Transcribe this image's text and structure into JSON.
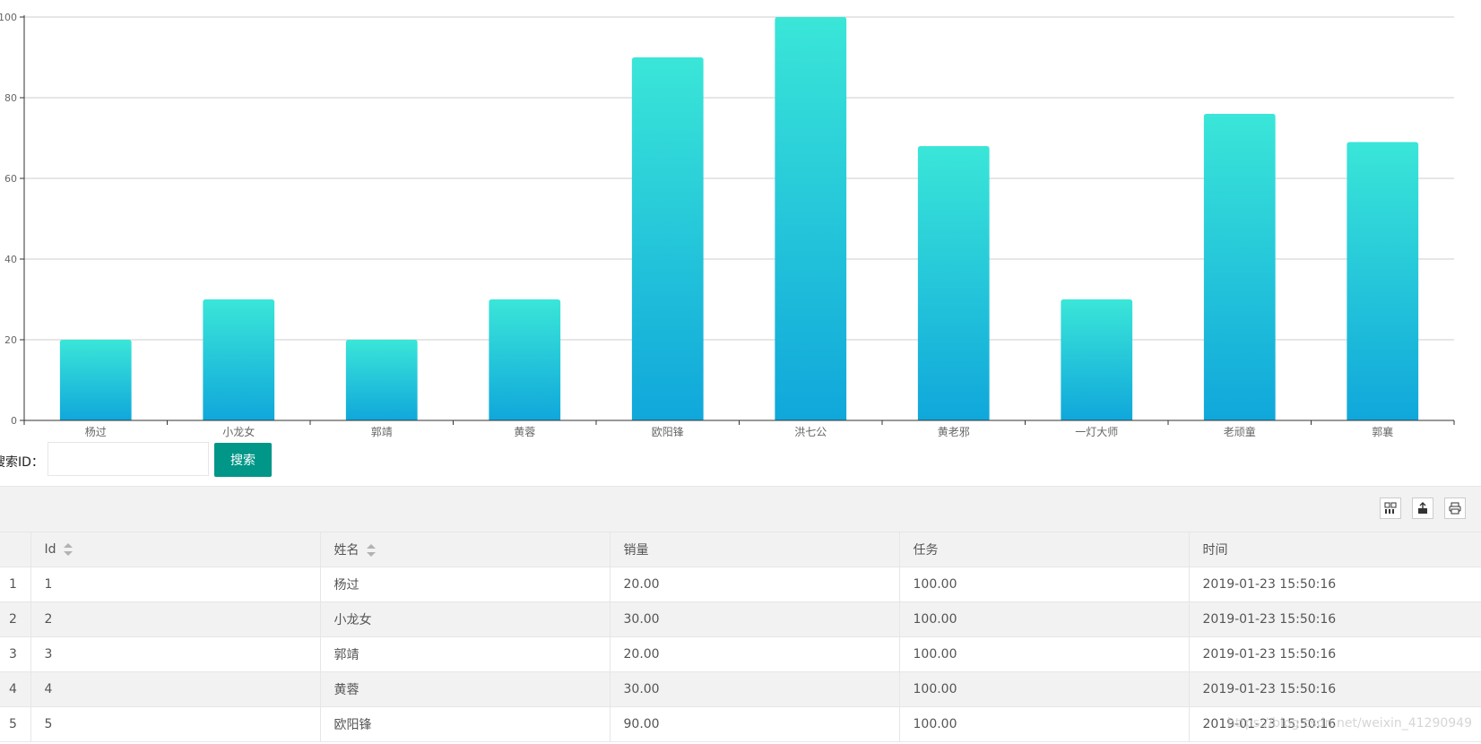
{
  "chart_data": {
    "type": "bar",
    "categories": [
      "杨过",
      "小龙女",
      "郭靖",
      "黄蓉",
      "欧阳锋",
      "洪七公",
      "黄老邪",
      "一灯大师",
      "老顽童",
      "郭襄"
    ],
    "values": [
      20,
      30,
      20,
      30,
      90,
      100,
      68,
      30,
      76,
      69
    ],
    "yticks": [
      0,
      20,
      40,
      60,
      80,
      100
    ],
    "ylim": [
      0,
      100
    ],
    "grid": true,
    "colors": {
      "top": "#3ae6d8",
      "bottom": "#10a7db",
      "axis": "#333333",
      "grid": "#cccccc"
    }
  },
  "search": {
    "label": "搜索ID：",
    "placeholder": "",
    "value": "",
    "button": "搜索"
  },
  "toolbar": {
    "icons": [
      "columns-icon",
      "export-icon",
      "print-icon"
    ]
  },
  "table": {
    "columns": [
      "",
      "Id",
      "姓名",
      "销量",
      "任务",
      "时间"
    ],
    "rows": [
      [
        "1",
        "1",
        "杨过",
        "20.00",
        "100.00",
        "2019-01-23 15:50:16"
      ],
      [
        "2",
        "2",
        "小龙女",
        "30.00",
        "100.00",
        "2019-01-23 15:50:16"
      ],
      [
        "3",
        "3",
        "郭靖",
        "20.00",
        "100.00",
        "2019-01-23 15:50:16"
      ],
      [
        "4",
        "4",
        "黄蓉",
        "30.00",
        "100.00",
        "2019-01-23 15:50:16"
      ],
      [
        "5",
        "5",
        "欧阳锋",
        "90.00",
        "100.00",
        "2019-01-23 15:50:16"
      ]
    ]
  },
  "watermark": "https://blog.csdn.net/weixin_41290949"
}
